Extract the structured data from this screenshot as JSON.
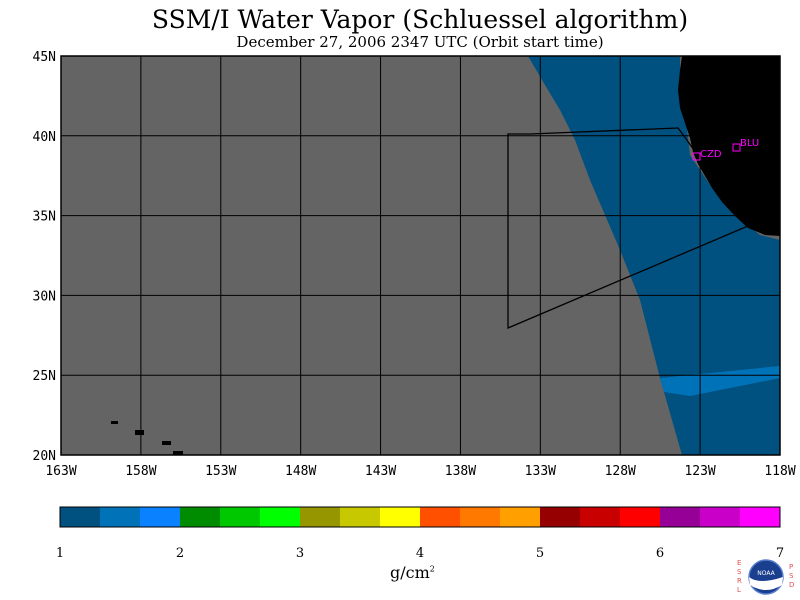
{
  "title": "SSM/I Water Vapor (Schluessel algorithm)",
  "subtitle": "December 27, 2006  2347 UTC  (Orbit start time)",
  "map": {
    "lat_labels": [
      "45N",
      "40N",
      "35N",
      "30N",
      "25N",
      "20N"
    ],
    "lon_labels": [
      "163W",
      "158W",
      "153W",
      "148W",
      "143W",
      "138W",
      "133W",
      "128W",
      "123W",
      "118W"
    ],
    "stations": [
      {
        "label": "CZD"
      },
      {
        "label": "BLU"
      }
    ],
    "colors": {
      "no_data": "#646464",
      "land": "#000000",
      "vapor_1_1_5": "#005080",
      "vapor_1_5_2": "#0073b8",
      "station": "#ff00ff"
    }
  },
  "colorbar": {
    "labels": [
      "1",
      "2",
      "3",
      "4",
      "5",
      "6",
      "7"
    ],
    "units": "g/cm",
    "units_sup": "2",
    "colors": [
      "#005080",
      "#0073b8",
      "#0a82ff",
      "#008c00",
      "#00c800",
      "#00ff00",
      "#969600",
      "#c8c800",
      "#ffff00",
      "#ff5000",
      "#ff7800",
      "#ffa000",
      "#960000",
      "#c80000",
      "#ff0000",
      "#960096",
      "#c800c8",
      "#ff00ff"
    ]
  },
  "logo": {
    "left_letters": "ESRL",
    "right_letters": "PSD",
    "text": "NOAA"
  }
}
